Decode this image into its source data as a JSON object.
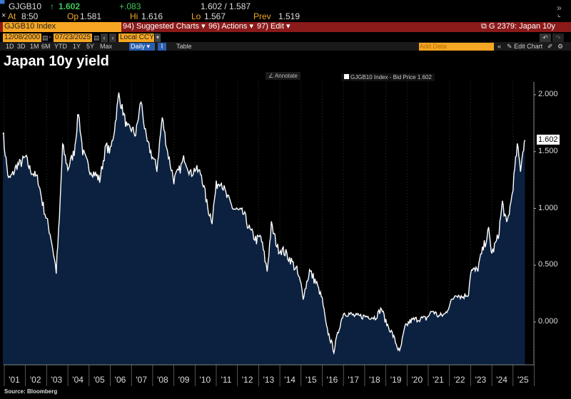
{
  "header": {
    "ticker": "GJGB10",
    "last": "1.602",
    "change": "+.083",
    "bid_ask": "1.602 / 1.587",
    "time_label": "At",
    "time": "8:50",
    "open_label": "Op",
    "open": "1.581",
    "high_label": "Hi",
    "high": "1.616",
    "low_label": "Lo",
    "low": "1.567",
    "prev_label": "Prev",
    "prev": "1.519"
  },
  "toolbar": {
    "security": "GJGB10 Index",
    "suggested": "94) Suggested Charts",
    "actions": "96) Actions",
    "edit": "97) Edit",
    "chart_id": "G 2379: Japan 10y",
    "start_date": "12/08/2000",
    "end_date": "07/23/2025",
    "currency": "Local CCY",
    "periods": [
      "1D",
      "3D",
      "1M",
      "6M",
      "YTD",
      "1Y",
      "5Y",
      "Max"
    ],
    "frequency": "Daily",
    "table": "Table",
    "add_data_placeholder": "Add Data",
    "edit_chart": "Edit Chart"
  },
  "chart_title": "Japan 10y yield",
  "annotate": "Annotate",
  "source": "Source: Bloomberg",
  "colors": {
    "line": "#ffffff",
    "fill": "#0b213f",
    "accent": "#f5a623",
    "bar": "#8b1a1a"
  },
  "chart_data": {
    "type": "area",
    "title": "Japan 10y yield",
    "legend": "GJGB10 Index - Bid Price 1.602",
    "legend_position": "top-center",
    "last_value_label": "1.602",
    "ylim": [
      -0.3,
      2.25
    ],
    "yticks": [
      "2.000",
      "1.500",
      "1.000",
      "0.500",
      "0.000"
    ],
    "ytick_values": [
      2.0,
      1.5,
      1.0,
      0.5,
      0.0
    ],
    "xticks": [
      "'01",
      "'02",
      "'03",
      "'04",
      "'05",
      "'06",
      "'07",
      "'08",
      "'09",
      "'10",
      "'11",
      "'12",
      "'13",
      "'14",
      "'15",
      "'16",
      "'17",
      "'18",
      "'19",
      "'20",
      "'21",
      "'22",
      "'23",
      "'24",
      "'25"
    ],
    "xlim": [
      2000.93,
      2025.6
    ],
    "x": [
      2000.93,
      2001.0,
      2001.2,
      2001.4,
      2001.6,
      2001.8,
      2002.0,
      2002.2,
      2002.4,
      2002.6,
      2002.8,
      2003.0,
      2003.2,
      2003.45,
      2003.6,
      2003.75,
      2004.0,
      2004.3,
      2004.5,
      2004.7,
      2005.0,
      2005.3,
      2005.5,
      2005.8,
      2006.0,
      2006.2,
      2006.4,
      2006.6,
      2006.8,
      2007.0,
      2007.2,
      2007.45,
      2007.7,
      2008.0,
      2008.2,
      2008.45,
      2008.7,
      2009.0,
      2009.3,
      2009.5,
      2009.8,
      2010.0,
      2010.3,
      2010.6,
      2010.8,
      2011.0,
      2011.2,
      2011.5,
      2011.8,
      2012.0,
      2012.3,
      2012.6,
      2012.9,
      2013.1,
      2013.3,
      2013.4,
      2013.6,
      2013.9,
      2014.2,
      2014.5,
      2014.8,
      2015.0,
      2015.1,
      2015.4,
      2015.7,
      2016.0,
      2016.2,
      2016.55,
      2016.8,
      2017.0,
      2017.3,
      2017.6,
      2017.9,
      2018.2,
      2018.5,
      2018.8,
      2019.0,
      2019.3,
      2019.65,
      2019.9,
      2020.1,
      2020.3,
      2020.6,
      2020.9,
      2021.2,
      2021.5,
      2021.8,
      2022.0,
      2022.3,
      2022.6,
      2022.9,
      2023.0,
      2023.3,
      2023.6,
      2023.85,
      2024.0,
      2024.3,
      2024.5,
      2024.7,
      2024.9,
      2025.0,
      2025.2,
      2025.35,
      2025.5,
      2025.56
    ],
    "values": [
      1.7,
      1.55,
      1.25,
      1.3,
      1.38,
      1.4,
      1.45,
      1.35,
      1.3,
      1.25,
      1.05,
      0.9,
      0.75,
      0.45,
      0.9,
      1.55,
      1.35,
      1.5,
      1.85,
      1.5,
      1.35,
      1.3,
      1.25,
      1.55,
      1.5,
      1.7,
      2.0,
      1.85,
      1.7,
      1.7,
      1.65,
      1.95,
      1.6,
      1.45,
      1.35,
      1.8,
      1.5,
      1.25,
      1.35,
      1.45,
      1.3,
      1.35,
      1.3,
      1.0,
      0.9,
      1.2,
      1.25,
      1.1,
      1.0,
      0.98,
      0.95,
      0.8,
      0.72,
      0.75,
      0.55,
      0.45,
      0.85,
      0.65,
      0.62,
      0.55,
      0.45,
      0.32,
      0.22,
      0.45,
      0.35,
      0.2,
      -0.05,
      -0.25,
      -0.05,
      0.08,
      0.07,
      0.05,
      0.05,
      0.05,
      0.04,
      0.12,
      0.0,
      -0.1,
      -0.27,
      -0.05,
      0.0,
      0.02,
      0.03,
      0.03,
      0.1,
      0.05,
      0.07,
      0.15,
      0.25,
      0.22,
      0.25,
      0.45,
      0.45,
      0.65,
      0.8,
      0.6,
      0.75,
      1.05,
      0.85,
      1.05,
      1.2,
      1.55,
      1.35,
      1.55,
      1.602
    ]
  }
}
